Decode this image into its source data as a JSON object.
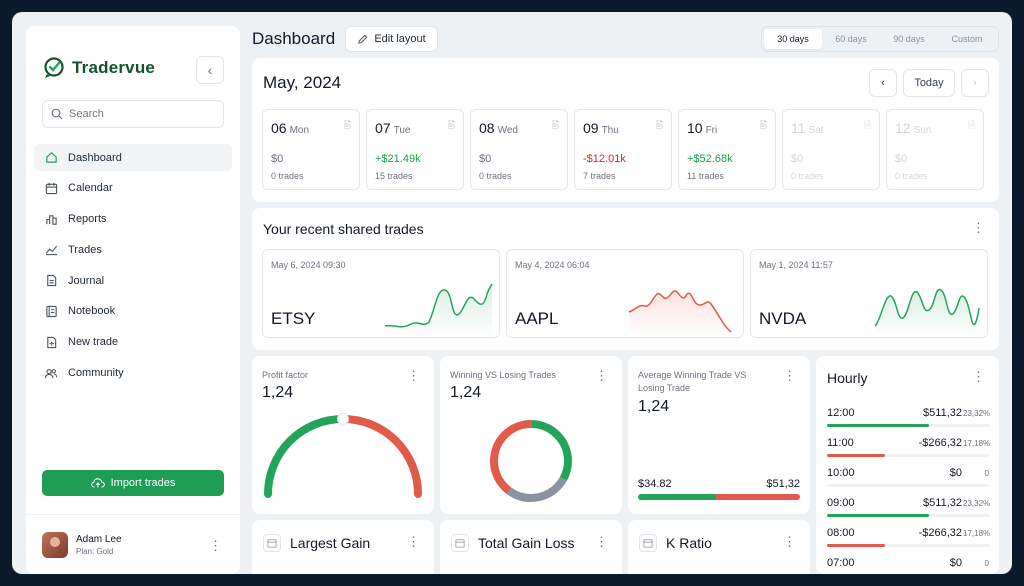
{
  "app": {
    "name": "Tradervue"
  },
  "sidebar": {
    "search_placeholder": "Search",
    "items": [
      {
        "label": "Dashboard",
        "icon": "home-icon",
        "active": true
      },
      {
        "label": "Calendar",
        "icon": "calendar-icon"
      },
      {
        "label": "Reports",
        "icon": "bar-chart-icon"
      },
      {
        "label": "Trades",
        "icon": "line-chart-icon"
      },
      {
        "label": "Journal",
        "icon": "document-icon"
      },
      {
        "label": "Notebook",
        "icon": "notebook-icon"
      },
      {
        "label": "New trade",
        "icon": "new-document-icon"
      },
      {
        "label": "Community",
        "icon": "users-icon"
      }
    ],
    "import_label": "Import trades",
    "user": {
      "name": "Adam Lee",
      "plan": "Plan: Gold"
    }
  },
  "header": {
    "title": "Dashboard",
    "edit_label": "Edit layout",
    "ranges": [
      "30 days",
      "60 days",
      "90 days",
      "Custom"
    ],
    "active_range": "30 days"
  },
  "calendar": {
    "month": "May, 2024",
    "today_label": "Today",
    "days": [
      {
        "num": "06",
        "dow": "Mon",
        "pnl": "$0",
        "trades": "0 trades",
        "tone": "neutral"
      },
      {
        "num": "07",
        "dow": "Tue",
        "pnl": "+$21.49k",
        "trades": "15 trades",
        "tone": "pos"
      },
      {
        "num": "08",
        "dow": "Wed",
        "pnl": "$0",
        "trades": "0 trades",
        "tone": "neutral"
      },
      {
        "num": "09",
        "dow": "Thu",
        "pnl": "-$12.01k",
        "trades": "7 trades",
        "tone": "neg"
      },
      {
        "num": "10",
        "dow": "Fri",
        "pnl": "+$52.68k",
        "trades": "11 trades",
        "tone": "pos"
      },
      {
        "num": "11",
        "dow": "Sat",
        "pnl": "$0",
        "trades": "0 trades",
        "tone": "faded"
      },
      {
        "num": "12",
        "dow": "Sun",
        "pnl": "$0",
        "trades": "0 trades",
        "tone": "faded"
      }
    ]
  },
  "shared": {
    "title": "Your recent shared trades",
    "trades": [
      {
        "date": "May 6, 2024 09:30",
        "symbol": "ETSY",
        "color": "#22a55a"
      },
      {
        "date": "May 4, 2024 06:04",
        "symbol": "AAPL",
        "color": "#e25a4a"
      },
      {
        "date": "May 1, 2024 11:57",
        "symbol": "NVDA",
        "color": "#22a55a"
      }
    ]
  },
  "metrics": {
    "profit_factor": {
      "title": "Profit factor",
      "value": "1,24"
    },
    "win_lose": {
      "title": "Winning VS Losing Trades",
      "value": "1,24",
      "win_fraction": 0.33,
      "neutral_fraction": 0.27,
      "lose_fraction": 0.4
    },
    "avg_win_lose": {
      "title": "Average Winning Trade VS Losing Trade",
      "value": "1,24",
      "win": "$34.82",
      "lose": "$51,32",
      "win_fraction": 0.48
    }
  },
  "hourly": {
    "title": "Hourly",
    "rows": [
      {
        "time": "12:00",
        "value": "$511,32",
        "pct": "23,32%",
        "fill": 0.63,
        "tone": "pos"
      },
      {
        "time": "11:00",
        "value": "-$266,32",
        "pct": "17,18%",
        "fill": 0.36,
        "tone": "neg"
      },
      {
        "time": "10:00",
        "value": "$0",
        "pct": "0",
        "fill": 0,
        "tone": "neutral"
      },
      {
        "time": "09:00",
        "value": "$511,32",
        "pct": "23,32%",
        "fill": 0.63,
        "tone": "pos"
      },
      {
        "time": "08:00",
        "value": "-$266,32",
        "pct": "17,18%",
        "fill": 0.36,
        "tone": "neg"
      },
      {
        "time": "07:00",
        "value": "$0",
        "pct": "0",
        "fill": 0,
        "tone": "neutral"
      }
    ]
  },
  "bottom_cards": [
    {
      "title": "Largest Gain"
    },
    {
      "title": "Total Gain Loss"
    },
    {
      "title": "K Ratio"
    }
  ],
  "colors": {
    "green": "#22a55a",
    "red": "#e25a4a",
    "gray": "#8b93a0",
    "track": "#eef0f2"
  }
}
